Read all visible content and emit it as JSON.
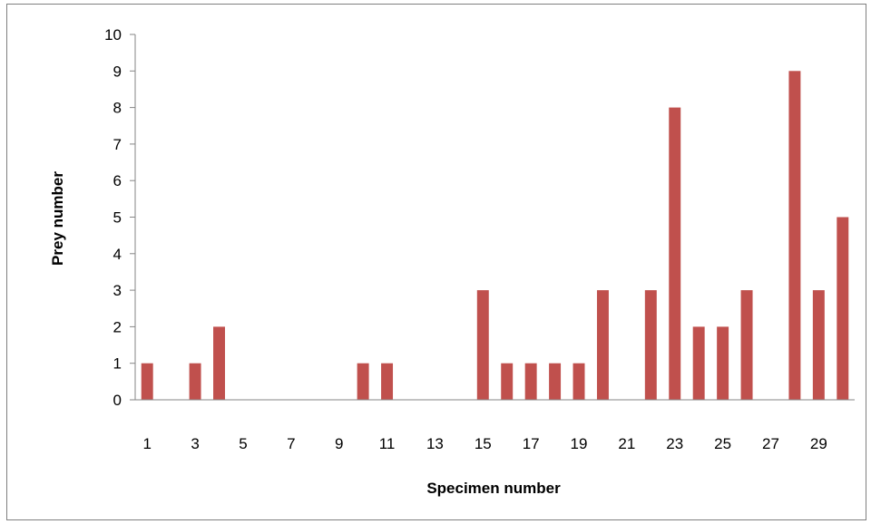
{
  "chart_data": {
    "type": "bar",
    "title": "",
    "xlabel": "Specimen number",
    "ylabel": "Prey number",
    "x": [
      1,
      2,
      3,
      4,
      5,
      6,
      7,
      8,
      9,
      10,
      11,
      12,
      13,
      14,
      15,
      16,
      17,
      18,
      19,
      20,
      21,
      22,
      23,
      24,
      25,
      26,
      27,
      28,
      29,
      30
    ],
    "values": [
      1,
      0,
      1,
      2,
      0,
      0,
      0,
      0,
      0,
      1,
      1,
      0,
      0,
      0,
      3,
      1,
      1,
      1,
      1,
      3,
      0,
      3,
      8,
      2,
      2,
      3,
      0,
      9,
      3,
      5
    ],
    "x_tick_labels": [
      "1",
      "3",
      "5",
      "7",
      "9",
      "11",
      "13",
      "15",
      "17",
      "19",
      "21",
      "23",
      "25",
      "27",
      "29"
    ],
    "ylim": [
      0,
      10
    ],
    "y_ticks": [
      0,
      1,
      2,
      3,
      4,
      5,
      6,
      7,
      8,
      9,
      10
    ],
    "grid": false,
    "legend": "none",
    "bar_color": "#c0504d",
    "axis_color": "#868686"
  }
}
